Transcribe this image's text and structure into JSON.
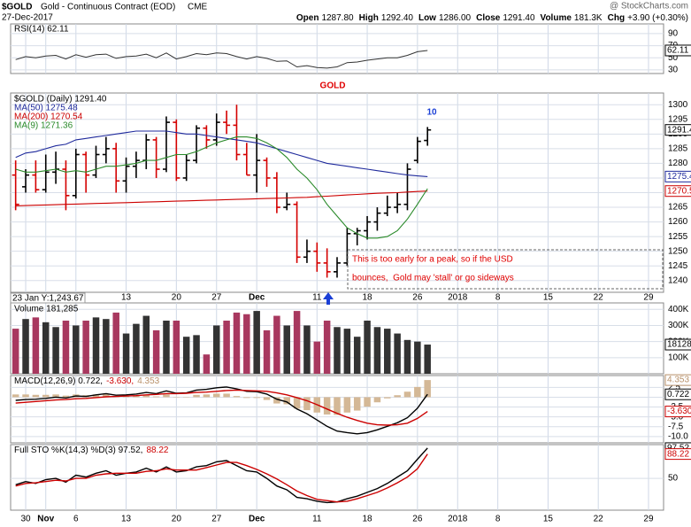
{
  "chart_data": {
    "type": "stock",
    "header": {
      "symbol": "$GOLD",
      "name": "Gold - Continuous Contract (EOD)",
      "exchange": "CME",
      "source": "@ StockCharts.com",
      "date": "27-Dec-2017",
      "quote": [
        {
          "label": "Open",
          "value": "1287.80"
        },
        {
          "label": "High",
          "value": "1292.40"
        },
        {
          "label": "Low",
          "value": "1286.00"
        },
        {
          "label": "Close",
          "value": "1291.40"
        },
        {
          "label": "Volume",
          "value": "181.3K"
        },
        {
          "label": "Chg",
          "value": "+3.90 (+0.30%)"
        }
      ]
    },
    "annotations": {
      "title": "GOLD",
      "wave": "10",
      "note": [
        "This is too early for a peak, so if the USD",
        "bounces,  Gold may 'stall' or go sideways"
      ],
      "cursor": "23 Jan Y:1,243.67"
    },
    "categories": [
      null,
      "30",
      null,
      "Nov",
      null,
      null,
      "6",
      null,
      null,
      null,
      null,
      "13",
      null,
      null,
      null,
      null,
      "20",
      null,
      null,
      null,
      "27",
      null,
      null,
      null,
      "Dec",
      null,
      null,
      null,
      null,
      null,
      "11",
      null,
      null,
      null,
      null,
      "18",
      null,
      null,
      null,
      null,
      "26",
      null,
      null,
      null,
      "2018",
      null,
      null,
      null,
      "8",
      null,
      null,
      null,
      null,
      "15",
      null,
      null,
      null,
      null,
      "22",
      null,
      null,
      null,
      null,
      "29",
      null
    ],
    "grid": true,
    "rsi": {
      "legend": "RSI(14) 62.11",
      "color": "#333333",
      "last_label": "62.11",
      "ylim": [
        24,
        106
      ],
      "yticks": [
        30,
        50,
        70,
        90
      ],
      "values": [
        47,
        52,
        50,
        53,
        54,
        48,
        55,
        51,
        55,
        56,
        49,
        52,
        53,
        56,
        50,
        58,
        48,
        52,
        57,
        55,
        58,
        57,
        52,
        48,
        52,
        49,
        44,
        45,
        35,
        37,
        34,
        33,
        35,
        42,
        43,
        46,
        48,
        50,
        50,
        54,
        60,
        62.11,
        null,
        null,
        null,
        null,
        null,
        null,
        null,
        null,
        null,
        null,
        null,
        null,
        null,
        null,
        null,
        null,
        null,
        null,
        null,
        null,
        null,
        null,
        null
      ]
    },
    "price": {
      "legend": "$GOLD (Daily) 1291.40",
      "last_label": "1291.40",
      "up_color": "#000000",
      "down_color": "#d40000",
      "ylim": [
        1236,
        1304
      ],
      "yticks": [
        1240,
        1245,
        1250,
        1255,
        1260,
        1265,
        1270,
        1275,
        1280,
        1285,
        1290,
        1295,
        1300
      ],
      "open": [
        1276,
        1272,
        1276,
        1271,
        1277,
        1278,
        1269,
        1283,
        1276,
        1283,
        1285,
        1274,
        1279,
        1281,
        1288,
        1278,
        1294,
        1275,
        1281,
        1292,
        1288,
        1294,
        1293,
        1283,
        1276,
        1281,
        1275,
        1265,
        1266,
        1248,
        1250,
        1246,
        1243,
        1246,
        1256,
        1257,
        1260,
        1263,
        1265,
        1266,
        1281,
        1287.8,
        null,
        null,
        null,
        null,
        null,
        null,
        null,
        null,
        null,
        null,
        null,
        null,
        null,
        null,
        null,
        null,
        null,
        null,
        null,
        null,
        null,
        null,
        null
      ],
      "high": [
        1281,
        1278,
        1281,
        1283,
        1284,
        1281,
        1285,
        1284,
        1286,
        1289,
        1287,
        1282,
        1284,
        1290,
        1289,
        1296,
        1295,
        1283,
        1293,
        1293,
        1297,
        1298,
        1300,
        1287,
        1290,
        1282,
        1277,
        1270,
        1267,
        1254,
        1253,
        1251,
        1248,
        1258,
        1258,
        1262,
        1265,
        1269,
        1270,
        1280,
        1289,
        1292.4,
        null,
        null,
        null,
        null,
        null,
        null,
        null,
        null,
        null,
        null,
        null,
        null,
        null,
        null,
        null,
        null,
        null,
        null,
        null,
        null,
        null,
        null,
        null
      ],
      "low": [
        1264,
        1270,
        1270,
        1270,
        1273,
        1264,
        1268,
        1270,
        1275,
        1280,
        1270,
        1270,
        1275,
        1278,
        1275,
        1277,
        1274,
        1274,
        1280,
        1285,
        1286,
        1290,
        1281,
        1276,
        1270,
        1272,
        1263,
        1264,
        1246,
        1246,
        1243,
        1241,
        1241,
        1245,
        1252,
        1254,
        1257,
        1262,
        1263,
        1264,
        1280,
        1286,
        null,
        null,
        null,
        null,
        null,
        null,
        null,
        null,
        null,
        null,
        null,
        null,
        null,
        null,
        null,
        null,
        null,
        null,
        null,
        null,
        null,
        null,
        null
      ],
      "close": [
        1266,
        1276,
        1271,
        1277,
        1278,
        1269,
        1283,
        1276,
        1283,
        1285,
        1274,
        1279,
        1281,
        1288,
        1278,
        1294,
        1275,
        1281,
        1292,
        1288,
        1294,
        1293,
        1283,
        1276,
        1281,
        1275,
        1265,
        1266,
        1248,
        1250,
        1246,
        1243,
        1246,
        1256,
        1257,
        1260,
        1263,
        1265,
        1266,
        1278,
        1287.5,
        1291.4,
        null,
        null,
        null,
        null,
        null,
        null,
        null,
        null,
        null,
        null,
        null,
        null,
        null,
        null,
        null,
        null,
        null,
        null,
        null,
        null,
        null,
        null,
        null
      ],
      "series": [
        {
          "name": "MA(50) 1275.48",
          "color": "#1f2a9c",
          "last_label": "1275.48",
          "values": [
            1282,
            1283.5,
            1284,
            1285,
            1286,
            1286.5,
            1288,
            1288.5,
            1289,
            1289.5,
            1290,
            1290.5,
            1291,
            1291,
            1291,
            1291,
            1290.5,
            1290,
            1290,
            1289.5,
            1289,
            1288.5,
            1288,
            1287.5,
            1287,
            1286,
            1285,
            1284,
            1283,
            1282,
            1281,
            1280,
            1279.5,
            1279,
            1278.5,
            1278,
            1277.5,
            1277,
            1276.5,
            1276,
            1275.7,
            1275.48,
            null,
            null,
            null,
            null,
            null,
            null,
            null,
            null,
            null,
            null,
            null,
            null,
            null,
            null,
            null,
            null,
            null,
            null,
            null,
            null,
            null,
            null,
            null
          ]
        },
        {
          "name": "MA(200) 1270.54",
          "color": "#cc0000",
          "last_label": "1270.54",
          "values": [
            1265.5,
            1265.6,
            1265.7,
            1265.8,
            1265.9,
            1266,
            1266.1,
            1266.2,
            1266.3,
            1266.4,
            1266.5,
            1266.6,
            1266.7,
            1266.8,
            1266.9,
            1267,
            1267.1,
            1267.2,
            1267.3,
            1267.4,
            1267.5,
            1267.6,
            1267.7,
            1267.8,
            1267.9,
            1268,
            1268.1,
            1268.2,
            1268.3,
            1268.4,
            1268.6,
            1268.8,
            1269,
            1269.2,
            1269.4,
            1269.6,
            1269.8,
            1269.9,
            1270,
            1270.2,
            1270.4,
            1270.54,
            null,
            null,
            null,
            null,
            null,
            null,
            null,
            null,
            null,
            null,
            null,
            null,
            null,
            null,
            null,
            null,
            null,
            null,
            null,
            null,
            null,
            null,
            null
          ]
        },
        {
          "name": "MA(9) 1271.36",
          "color": "#2a8a2a",
          "values": [
            1278,
            1277,
            1277,
            1277.5,
            1278,
            1277,
            1277.5,
            1277,
            1278,
            1279,
            1279,
            1279.5,
            1280,
            1281,
            1281,
            1282,
            1283,
            1283,
            1284,
            1285.5,
            1287,
            1288,
            1289,
            1289,
            1288.5,
            1287,
            1285,
            1282,
            1278,
            1275,
            1271,
            1266,
            1262,
            1258,
            1256,
            1254.5,
            1254.5,
            1255,
            1257,
            1261,
            1266,
            1271.36,
            null,
            null,
            null,
            null,
            null,
            null,
            null,
            null,
            null,
            null,
            null,
            null,
            null,
            null,
            null,
            null,
            null,
            null,
            null,
            null,
            null,
            null,
            null
          ]
        }
      ]
    },
    "volume": {
      "legend": "Volume 181,285",
      "last_label": "181285",
      "up_color": "#333333",
      "down_color": "#a8385f",
      "ylim": [
        0,
        440000
      ],
      "yticks": [
        {
          "value": 100000,
          "label": "100K"
        },
        {
          "value": 200000,
          "label": "200K"
        },
        {
          "value": 300000,
          "label": "300K"
        },
        {
          "value": 400000,
          "label": "400K"
        }
      ],
      "values": [
        280000,
        340000,
        350000,
        320000,
        290000,
        330000,
        300000,
        330000,
        350000,
        340000,
        380000,
        250000,
        310000,
        360000,
        270000,
        330000,
        330000,
        230000,
        240000,
        120000,
        300000,
        330000,
        380000,
        370000,
        390000,
        270000,
        360000,
        300000,
        390000,
        300000,
        200000,
        330000,
        290000,
        280000,
        230000,
        330000,
        290000,
        280000,
        250000,
        210000,
        200000,
        181285,
        null,
        null,
        null,
        null,
        null,
        null,
        null,
        null,
        null,
        null,
        null,
        null,
        null,
        null,
        null,
        null,
        null,
        null,
        null,
        null,
        null,
        null,
        null
      ]
    },
    "macd": {
      "legend": [
        {
          "text": "MACD(12,26,9) 0.722,",
          "color": "#000000"
        },
        {
          "text": "-3.630,",
          "color": "#cc0000"
        },
        {
          "text": "4.353",
          "color": "#b8916a"
        }
      ],
      "ylim": [
        -11.6,
        5.5
      ],
      "yticks": [
        {
          "value": -10,
          "label": "-10.0"
        },
        -7.5,
        {
          "value": -5,
          "label": "-5.0"
        },
        -2.5,
        {
          "value": 0,
          "label": "0.0"
        },
        2.5
      ],
      "histogram": {
        "color": "#d4b896",
        "last_label": "4.353",
        "values": [
          0.7,
          0.7,
          0.6,
          0.6,
          0.7,
          0.4,
          0.7,
          0.5,
          0.7,
          0.8,
          0.3,
          0.3,
          0.4,
          0.6,
          0.2,
          0.7,
          0.1,
          0.1,
          0.6,
          0.7,
          0.9,
          0.9,
          0.3,
          -0.2,
          -0.2,
          -0.7,
          -1.6,
          -1.8,
          -2.9,
          -3.3,
          -3.9,
          -4.4,
          -4.5,
          -3.9,
          -3.4,
          -2.4,
          -1.3,
          -0.3,
          0.5,
          1.4,
          2.6,
          4.353,
          null,
          null,
          null,
          null,
          null,
          null,
          null,
          null,
          null,
          null,
          null,
          null,
          null,
          null,
          null,
          null,
          null,
          null,
          null,
          null,
          null,
          null,
          null
        ]
      },
      "series": [
        {
          "color": "#000000",
          "last_label": "0.722",
          "values": [
            -0.8,
            -0.6,
            -0.5,
            -0.3,
            0,
            -0.2,
            0.3,
            0.2,
            0.6,
            0.9,
            0.5,
            0.6,
            0.8,
            1.2,
            0.9,
            1.6,
            1.0,
            1.1,
            1.8,
            2.0,
            2.4,
            2.6,
            2.1,
            1.5,
            1.4,
            0.8,
            -0.5,
            -1.2,
            -3.0,
            -4.2,
            -5.8,
            -7.4,
            -8.6,
            -9.0,
            -9.3,
            -9.0,
            -8.3,
            -7.4,
            -6.5,
            -5.2,
            -2.8,
            0.722,
            null,
            null,
            null,
            null,
            null,
            null,
            null,
            null,
            null,
            null,
            null,
            null,
            null,
            null,
            null,
            null,
            null,
            null,
            null,
            null,
            null,
            null,
            null
          ]
        },
        {
          "color": "#cc0000",
          "last_label": "-3.630",
          "values": [
            -1.5,
            -1.3,
            -1.1,
            -0.9,
            -0.7,
            -0.6,
            -0.4,
            -0.3,
            -0.1,
            0.1,
            0.2,
            0.3,
            0.4,
            0.6,
            0.7,
            0.9,
            0.9,
            1.0,
            1.2,
            1.3,
            1.5,
            1.7,
            1.8,
            1.7,
            1.6,
            1.5,
            1.1,
            0.6,
            -0.1,
            -0.9,
            -1.9,
            -3.0,
            -4.1,
            -5.1,
            -5.9,
            -6.6,
            -7.0,
            -7.1,
            -7.0,
            -6.6,
            -5.4,
            -3.63,
            null,
            null,
            null,
            null,
            null,
            null,
            null,
            null,
            null,
            null,
            null,
            null,
            null,
            null,
            null,
            null,
            null,
            null,
            null,
            null,
            null,
            null,
            null
          ]
        }
      ]
    },
    "sto": {
      "legend": [
        {
          "text": "Full STO %K(14,3) %D(3) 97.52,",
          "color": "#000000"
        },
        {
          "text": "88.22",
          "color": "#cc0000"
        }
      ],
      "ylim": [
        0,
        103
      ],
      "yticks": [
        50
      ],
      "series": [
        {
          "color": "#000000",
          "last_label": "97.52",
          "values": [
            40,
            45,
            42,
            48,
            50,
            44,
            55,
            52,
            58,
            62,
            55,
            58,
            60,
            66,
            60,
            68,
            60,
            62,
            68,
            70,
            76,
            78,
            70,
            62,
            60,
            50,
            38,
            32,
            20,
            18,
            14,
            12,
            13,
            18,
            22,
            28,
            34,
            42,
            52,
            62,
            80,
            97.52,
            null,
            null,
            null,
            null,
            null,
            null,
            null,
            null,
            null,
            null,
            null,
            null,
            null,
            null,
            null,
            null,
            null,
            null,
            null,
            null,
            null,
            null,
            null
          ]
        },
        {
          "color": "#cc0000",
          "last_label": "88.22",
          "values": [
            38,
            42,
            43,
            45,
            47,
            46,
            50,
            50,
            55,
            57,
            58,
            58,
            58,
            61,
            62,
            65,
            63,
            63,
            63,
            67,
            71,
            75,
            75,
            70,
            64,
            57,
            49,
            40,
            30,
            23,
            17,
            15,
            13,
            14,
            18,
            23,
            28,
            35,
            43,
            52,
            65,
            88.22,
            null,
            null,
            null,
            null,
            null,
            null,
            null,
            null,
            null,
            null,
            null,
            null,
            null,
            null,
            null,
            null,
            null,
            null,
            null,
            null,
            null,
            null,
            null
          ]
        }
      ]
    }
  }
}
